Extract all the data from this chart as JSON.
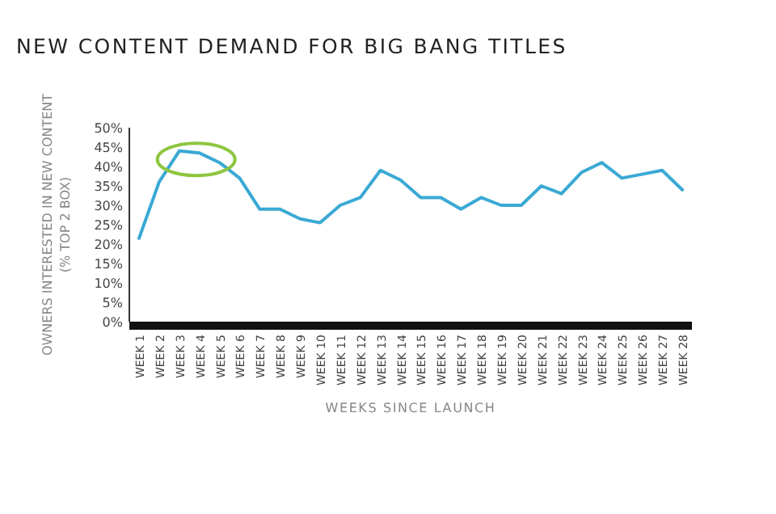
{
  "chart_data": {
    "type": "line",
    "title": "NEW CONTENT DEMAND FOR BIG BANG TITLES",
    "xlabel": "WEEKS SINCE LAUNCH",
    "ylabel": "OWNERS INTERESTED IN NEW CONTENT\n(% TOP 2 BOX)",
    "categories": [
      "WEEK 1",
      "WEEK 2",
      "WEEK 3",
      "WEEK 4",
      "WEEK 5",
      "WEEK 6",
      "WEEK 7",
      "WEEK 8",
      "WEEK 9",
      "WEEK 10",
      "WEEK 11",
      "WEEK 12",
      "WEEK 13",
      "WEEK 14",
      "WEEK 15",
      "WEEK 16",
      "WEEK 17",
      "WEEK 18",
      "WEEK 19",
      "WEEK 20",
      "WEEK 21",
      "WEEK 22",
      "WEEK 23",
      "WEEK 24",
      "WEEK 25",
      "WEEK 26",
      "WEEK 27",
      "WEEK 28"
    ],
    "series": [
      {
        "color": "#3aa9d4",
        "values": [
          21.5,
          36,
          44,
          43.5,
          41,
          37,
          29,
          29,
          26.5,
          25.5,
          30,
          32,
          39,
          36.5,
          32,
          32,
          29,
          32,
          30,
          30,
          35,
          33,
          38.5,
          41,
          37,
          38,
          39,
          34
        ]
      }
    ],
    "ylim": [
      0,
      50
    ],
    "yticks": [
      {
        "value": 0,
        "label": "0%"
      },
      {
        "value": 5,
        "label": "5%"
      },
      {
        "value": 10,
        "label": "10%"
      },
      {
        "value": 15,
        "label": "15%"
      },
      {
        "value": 20,
        "label": "20%"
      },
      {
        "value": 25,
        "label": "25%"
      },
      {
        "value": 30,
        "label": "30%"
      },
      {
        "value": 35,
        "label": "35%"
      },
      {
        "value": 40,
        "label": "40%"
      },
      {
        "value": 45,
        "label": "45%"
      },
      {
        "value": 50,
        "label": "50%"
      }
    ],
    "grid": false,
    "marker": "none",
    "line_style": "solid"
  }
}
